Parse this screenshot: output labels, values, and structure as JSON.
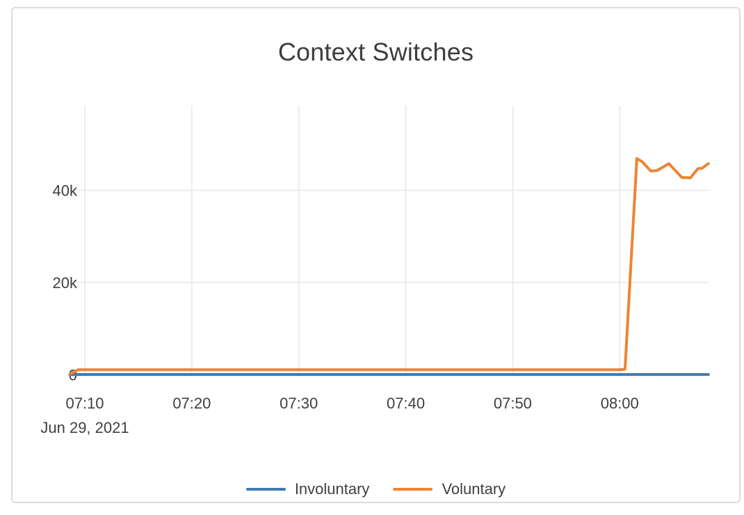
{
  "chart_data": {
    "type": "line",
    "title": "Context Switches",
    "x_axis": {
      "tick_labels": [
        "07:10",
        "07:20",
        "07:30",
        "07:40",
        "07:50",
        "08:00"
      ],
      "tick_minutes": [
        10,
        20,
        30,
        40,
        50,
        60
      ],
      "date_label": "Jun 29, 2021",
      "range_minutes": [
        8.6,
        68.3
      ]
    },
    "y_axis": {
      "tick_labels": [
        "0",
        "20k",
        "40k"
      ],
      "tick_values": [
        0,
        20000,
        40000
      ],
      "range": [
        0,
        58300
      ]
    },
    "grid": true,
    "legend_position": "bottom-center",
    "series": [
      {
        "name": "Involuntary",
        "color": "#3f7ab2",
        "x_minutes": [
          8.6,
          10,
          15,
          20,
          25,
          30,
          35,
          40,
          45,
          50,
          55,
          60,
          64,
          68.3
        ],
        "values": [
          50,
          60,
          60,
          60,
          60,
          60,
          60,
          60,
          60,
          60,
          60,
          60,
          60,
          60
        ]
      },
      {
        "name": "Voluntary",
        "color": "#ee8434",
        "x_minutes": [
          8.6,
          9.4,
          15,
          20,
          25,
          30,
          35,
          40,
          45,
          50,
          55,
          60,
          60.5,
          61.6,
          62.1,
          62.9,
          63.5,
          64.6,
          65.8,
          66.6,
          67.3,
          67.7,
          68.3
        ],
        "values": [
          150,
          1100,
          1100,
          1100,
          1100,
          1100,
          1100,
          1100,
          1100,
          1100,
          1100,
          1100,
          1200,
          46900,
          46200,
          44200,
          44300,
          45800,
          42800,
          42700,
          44700,
          44800,
          45800
        ]
      }
    ],
    "colors": {
      "grid_line": "#ececec",
      "axis_text": "#3f3f3f",
      "title_text": "#3d3d3d",
      "card_border": "#dcdcdc",
      "background": "#ffffff"
    }
  }
}
